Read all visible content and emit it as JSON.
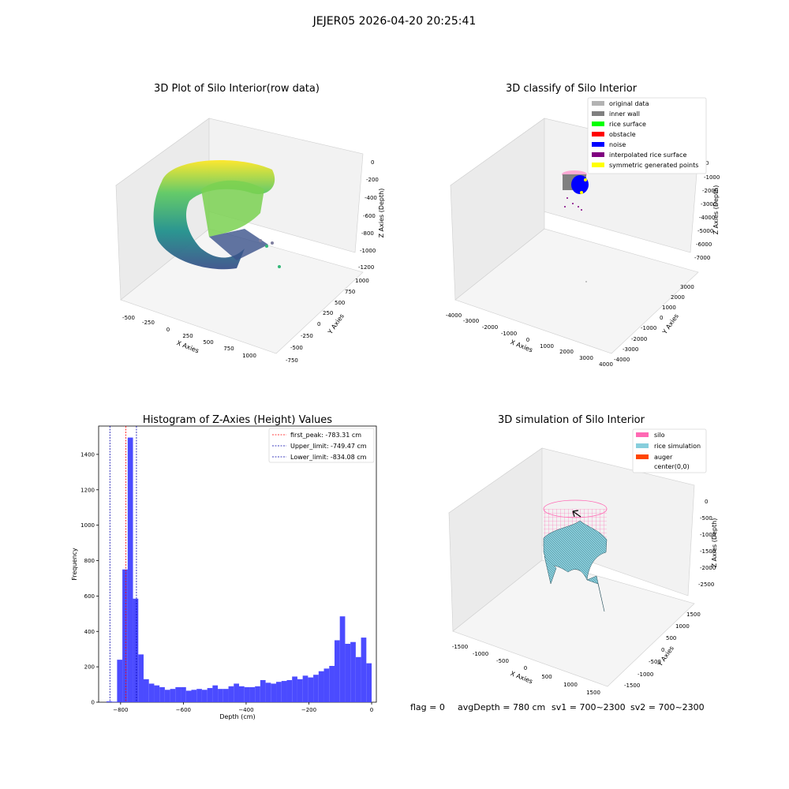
{
  "figure": {
    "suptitle": "JEJER05 2026-04-20 20:25:41",
    "footer": {
      "flag": "flag = 0",
      "avg_depth": "avgDepth = 780 cm",
      "sv1": "sv1 = 700~2300",
      "sv2": "sv2 = 700~2300"
    }
  },
  "chart_data": [
    {
      "type": "scatter",
      "projection": "3d",
      "title": "3D Plot of Silo Interior(row data)",
      "xlabel": "X Axies",
      "ylabel": "Y Axies",
      "zlabel": "Z Axies (Depth)",
      "xticks": [
        "-500",
        "-250",
        "0",
        "250",
        "500",
        "750",
        "1000"
      ],
      "yticks": [
        "-750",
        "-500",
        "-250",
        "0",
        "250",
        "500",
        "750",
        "1000"
      ],
      "zticks": [
        "-1200",
        "-1000",
        "-800",
        "-600",
        "-400",
        "-200",
        "0"
      ],
      "colormap": "viridis",
      "description_values": {
        "x_range": [
          -500,
          1000
        ],
        "y_range": [
          -750,
          1000
        ],
        "z_range": [
          -1200,
          0
        ]
      }
    },
    {
      "type": "scatter",
      "projection": "3d",
      "title": "3D classify of Silo Interior",
      "xlabel": "X Axies",
      "ylabel": "Y Axies",
      "zlabel": "Z Axies (Depth)",
      "xticks": [
        "-4000",
        "-3000",
        "-2000",
        "-1000",
        "0",
        "1000",
        "2000",
        "3000",
        "4000"
      ],
      "yticks": [
        "-4000",
        "-3000",
        "-2000",
        "-1000",
        "0",
        "1000",
        "2000",
        "3000"
      ],
      "zticks": [
        "-7000",
        "-6000",
        "-5000",
        "-4000",
        "-3000",
        "-2000",
        "-1000",
        "0"
      ],
      "legend": [
        {
          "label": "original data",
          "color": "#b3b3b3"
        },
        {
          "label": "inner wall",
          "color": "#808080"
        },
        {
          "label": "rice surface",
          "color": "#00ff00"
        },
        {
          "label": "obstacle",
          "color": "#ff0000"
        },
        {
          "label": "noise",
          "color": "#0000ff"
        },
        {
          "label": "interpolated rice surface",
          "color": "#800080"
        },
        {
          "label": "symmetric generated points",
          "color": "#ffff00"
        }
      ],
      "legend_loc": "upper right"
    },
    {
      "type": "bar",
      "title": "Histogram of Z-Axies (Height) Values",
      "xlabel": "Depth (cm)",
      "ylabel": "Frequency",
      "xlim": [
        -870,
        15
      ],
      "ylim": [
        0,
        1560
      ],
      "xticks": [
        -800,
        -600,
        -400,
        -200,
        0
      ],
      "yticks": [
        0,
        200,
        400,
        600,
        800,
        1000,
        1200,
        1400
      ],
      "bar_color": "#4b4bff",
      "bin_start": -845,
      "bin_width": 16.9,
      "values": [
        5,
        3,
        240,
        750,
        1495,
        585,
        270,
        130,
        105,
        95,
        85,
        70,
        75,
        85,
        85,
        65,
        70,
        75,
        70,
        80,
        95,
        75,
        75,
        90,
        105,
        90,
        85,
        85,
        90,
        125,
        110,
        105,
        115,
        120,
        125,
        145,
        130,
        150,
        140,
        155,
        175,
        190,
        205,
        350,
        485,
        330,
        340,
        255,
        365,
        220
      ],
      "lines": [
        {
          "label": "first_peak: -783.31 cm",
          "x": -783.31,
          "color": "#ff0000"
        },
        {
          "label": "Upper_limit: -749.47 cm",
          "x": -749.47,
          "color": "#0000aa"
        },
        {
          "label": "Lower_limit: -834.08 cm",
          "x": -834.08,
          "color": "#0000aa"
        }
      ],
      "legend_loc": "upper right"
    },
    {
      "type": "surface",
      "projection": "3d",
      "title": "3D simulation of Silo Interior",
      "xlabel": "X Axies",
      "ylabel": "Y Axies",
      "zlabel": "Z Axies (Depth)",
      "xticks": [
        "-1500",
        "-1000",
        "-500",
        "0",
        "500",
        "1000",
        "1500"
      ],
      "yticks": [
        "-1500",
        "-1000",
        "-500",
        "0",
        "500",
        "1000",
        "1500"
      ],
      "zticks": [
        "-2500",
        "-2000",
        "-1500",
        "-1000",
        "-500",
        "0"
      ],
      "legend": [
        {
          "label": "silo",
          "color": "#ff69b4"
        },
        {
          "label": "rice simulation",
          "color": "#87cedc"
        },
        {
          "label": "auger",
          "color": "#ff4500"
        },
        {
          "label": "center(0,0)",
          "color": ""
        }
      ],
      "legend_loc": "upper right"
    }
  ]
}
